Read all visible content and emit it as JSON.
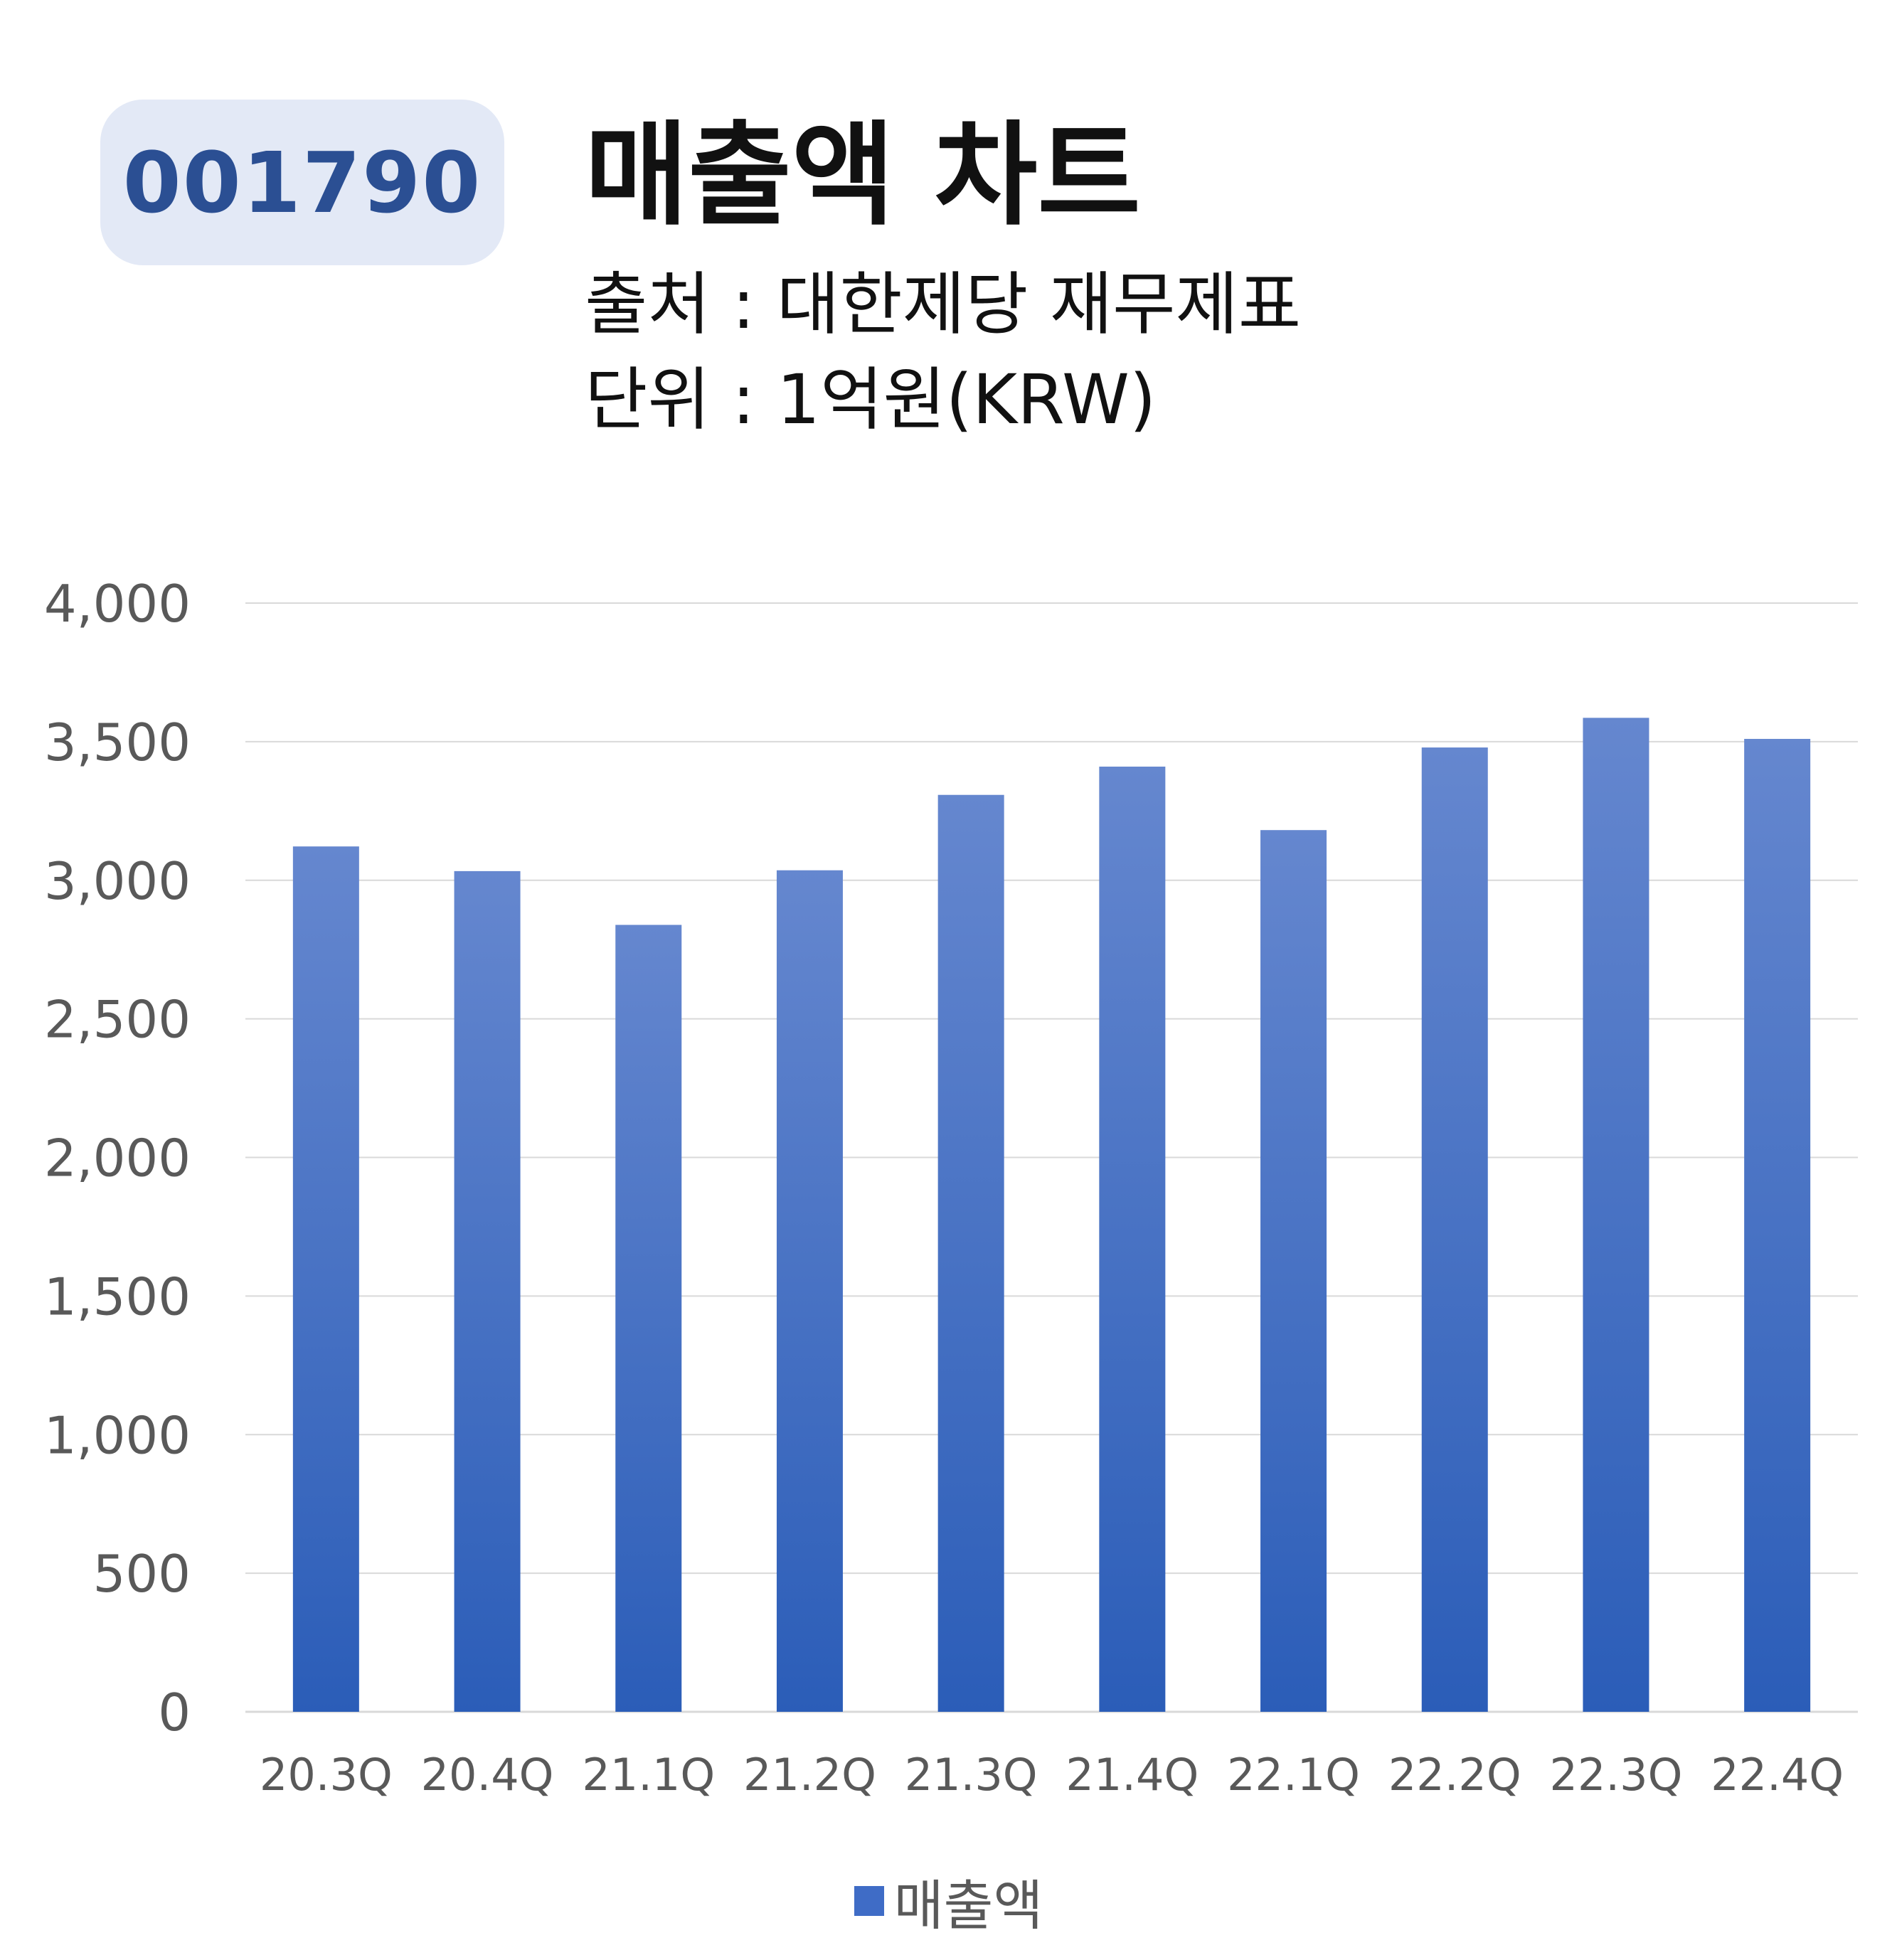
{
  "badge": {
    "code": "001790"
  },
  "header": {
    "title": "매출액 차트",
    "source": "출처 : 대한제당 재무제표",
    "unit": "단위 : 1억원(KRW)"
  },
  "colors": {
    "bar": "#3f6cc6",
    "bar_top": "#6587cf",
    "bar_bottom": "#2b5db8",
    "grid": "#d9d9d9",
    "tick": "#595959"
  },
  "chart_data": {
    "type": "bar",
    "categories": [
      "20.3Q",
      "20.4Q",
      "21.1Q",
      "21.2Q",
      "21.3Q",
      "21.4Q",
      "22.1Q",
      "22.2Q",
      "22.3Q",
      "22.4Q"
    ],
    "series": [
      {
        "name": "매출액",
        "values": [
          3122,
          3033,
          2839,
          3036,
          3308,
          3410,
          3181,
          3479,
          3586,
          3510
        ]
      }
    ],
    "yticks": [
      "0",
      "500",
      "1,000",
      "1,500",
      "2,000",
      "2,500",
      "3,000",
      "3,500",
      "4,000"
    ],
    "ylim": [
      0,
      4000
    ],
    "grid": true,
    "legend": "bottom-center"
  }
}
